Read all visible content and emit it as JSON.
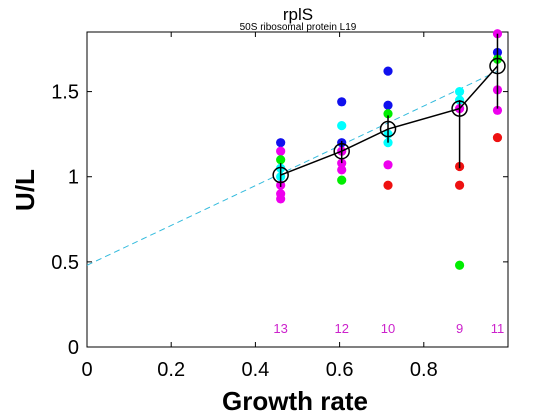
{
  "chart_data": {
    "type": "scatter",
    "title": "rplS",
    "subtitle": "50S ribosomal protein L19",
    "xlabel": "Growth rate",
    "ylabel": "U/L",
    "xlim": [
      0,
      1.0
    ],
    "ylim": [
      0,
      1.85
    ],
    "xticks": [
      "0",
      "0.2",
      "0.4",
      "0.6",
      "0.8"
    ],
    "yticks": [
      "0",
      "0.5",
      "1",
      "1.5"
    ],
    "grid": false,
    "colors": {
      "blue": "#1010ee",
      "cyan": "#00ffff",
      "green": "#00ee00",
      "red": "#ee1111",
      "magenta": "#ee00ee",
      "mean_line": "#000000",
      "fit_line": "#33bbdd",
      "count_text": "#cc22cc"
    },
    "points": [
      {
        "x": 0.46,
        "y": 1.2,
        "color": "blue"
      },
      {
        "x": 0.46,
        "y": 1.15,
        "color": "magenta"
      },
      {
        "x": 0.46,
        "y": 1.1,
        "color": "green"
      },
      {
        "x": 0.46,
        "y": 1.05,
        "color": "cyan"
      },
      {
        "x": 0.46,
        "y": 1.0,
        "color": "cyan"
      },
      {
        "x": 0.46,
        "y": 0.95,
        "color": "magenta"
      },
      {
        "x": 0.46,
        "y": 0.9,
        "color": "magenta"
      },
      {
        "x": 0.46,
        "y": 0.87,
        "color": "magenta"
      },
      {
        "x": 0.605,
        "y": 1.44,
        "color": "blue"
      },
      {
        "x": 0.605,
        "y": 1.3,
        "color": "cyan"
      },
      {
        "x": 0.605,
        "y": 1.2,
        "color": "blue"
      },
      {
        "x": 0.605,
        "y": 1.15,
        "color": "magenta"
      },
      {
        "x": 0.605,
        "y": 1.08,
        "color": "magenta"
      },
      {
        "x": 0.605,
        "y": 1.04,
        "color": "magenta"
      },
      {
        "x": 0.605,
        "y": 0.98,
        "color": "green"
      },
      {
        "x": 0.715,
        "y": 1.62,
        "color": "blue"
      },
      {
        "x": 0.715,
        "y": 1.42,
        "color": "blue"
      },
      {
        "x": 0.715,
        "y": 1.37,
        "color": "green"
      },
      {
        "x": 0.715,
        "y": 1.25,
        "color": "cyan"
      },
      {
        "x": 0.715,
        "y": 1.2,
        "color": "cyan"
      },
      {
        "x": 0.715,
        "y": 1.07,
        "color": "magenta"
      },
      {
        "x": 0.715,
        "y": 0.95,
        "color": "red"
      },
      {
        "x": 0.885,
        "y": 1.5,
        "color": "cyan"
      },
      {
        "x": 0.885,
        "y": 1.45,
        "color": "cyan"
      },
      {
        "x": 0.885,
        "y": 1.4,
        "color": "magenta"
      },
      {
        "x": 0.885,
        "y": 1.06,
        "color": "red"
      },
      {
        "x": 0.885,
        "y": 0.95,
        "color": "red"
      },
      {
        "x": 0.885,
        "y": 0.48,
        "color": "green"
      },
      {
        "x": 0.975,
        "y": 1.84,
        "color": "magenta"
      },
      {
        "x": 0.975,
        "y": 1.73,
        "color": "blue"
      },
      {
        "x": 0.975,
        "y": 1.69,
        "color": "green"
      },
      {
        "x": 0.975,
        "y": 1.51,
        "color": "magenta"
      },
      {
        "x": 0.975,
        "y": 1.39,
        "color": "magenta"
      },
      {
        "x": 0.975,
        "y": 1.23,
        "color": "red"
      }
    ],
    "means": [
      {
        "x": 0.46,
        "y": 1.01,
        "err_low": 0.94,
        "err_high": 1.08,
        "count": "13"
      },
      {
        "x": 0.605,
        "y": 1.15,
        "err_low": 1.08,
        "err_high": 1.21,
        "count": "12"
      },
      {
        "x": 0.715,
        "y": 1.28,
        "err_low": 1.2,
        "err_high": 1.36,
        "count": "10"
      },
      {
        "x": 0.885,
        "y": 1.4,
        "err_low": 1.05,
        "err_high": 1.45,
        "count": "9"
      },
      {
        "x": 0.975,
        "y": 1.65,
        "err_low": 1.4,
        "err_high": 1.84,
        "count": "11"
      }
    ],
    "fit_line": {
      "style": "dashed",
      "x": [
        0,
        0.975
      ],
      "y": [
        0.48,
        1.62
      ]
    }
  }
}
